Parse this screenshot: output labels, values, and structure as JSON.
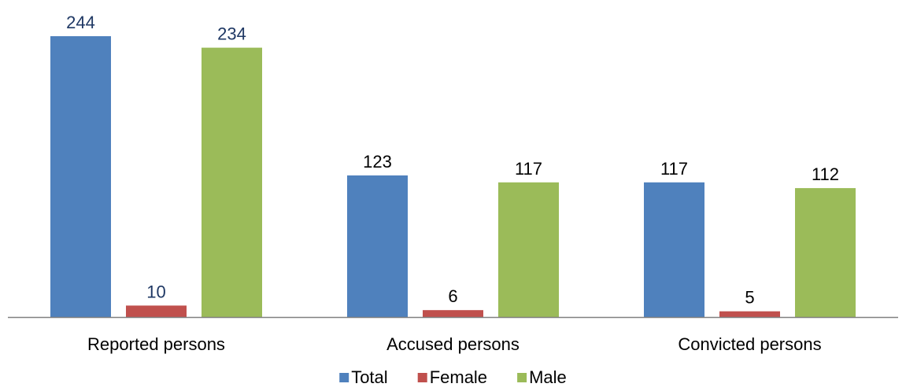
{
  "chart_data": {
    "type": "bar",
    "categories": [
      "Reported persons",
      "Accused persons",
      "Convicted persons"
    ],
    "series": [
      {
        "name": "Total",
        "values": [
          244,
          123,
          117
        ],
        "color": "#4F81BD"
      },
      {
        "name": "Female",
        "values": [
          10,
          6,
          5
        ],
        "color": "#C0504D"
      },
      {
        "name": "Male",
        "values": [
          234,
          117,
          112
        ],
        "color": "#9BBB59"
      }
    ],
    "data_label_colors": [
      "#1F3864",
      "#000000",
      "#000000"
    ],
    "ylim": [
      0,
      244
    ],
    "grid": false,
    "legend_position": "bottom",
    "axis_color": "#808080"
  }
}
